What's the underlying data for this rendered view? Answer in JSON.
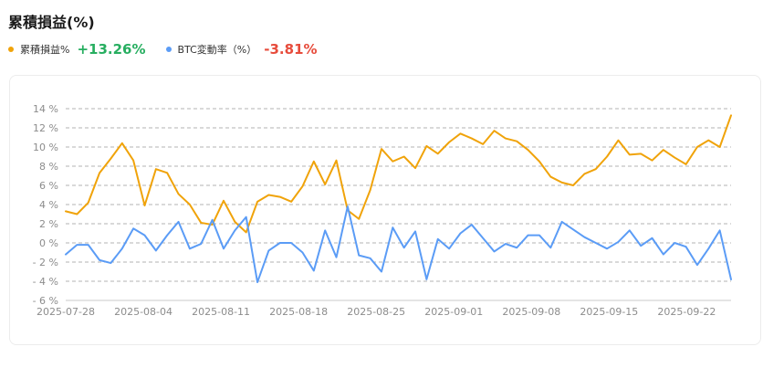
{
  "header": {
    "title": "累積損益(%)"
  },
  "legend": {
    "items": [
      {
        "label": "累積損益%",
        "value": "+13.26%",
        "color": "#f0a30a",
        "value_color": "#27ae60"
      },
      {
        "label": "BTC変動率（%）",
        "value": "-3.81%",
        "color": "#5b9cf6",
        "value_color": "#e74c3c"
      }
    ]
  },
  "chart_data": {
    "type": "line",
    "title": "累積損益(%)",
    "ylim": [
      -6,
      14
    ],
    "yticks": [
      -6,
      -4,
      -2,
      0,
      2,
      4,
      6,
      8,
      10,
      12,
      14
    ],
    "ytick_labels": [
      "- 6 %",
      "- 4 %",
      "- 2 %",
      "0 %",
      "2 %",
      "4 %",
      "6 %",
      "8 %",
      "10 %",
      "12 %",
      "14 %"
    ],
    "xlim": [
      "2025-07-28",
      "2025-09-26"
    ],
    "xtick_labels": [
      "2025-07-28",
      "2025-08-04",
      "2025-08-11",
      "2025-08-18",
      "2025-08-25",
      "2025-09-01",
      "2025-09-08",
      "2025-09-15",
      "2025-09-22"
    ],
    "grid": true,
    "series": [
      {
        "name": "累積損益%",
        "color": "#f0a30a",
        "values": [
          3.3,
          3.0,
          4.2,
          7.3,
          8.8,
          10.4,
          8.6,
          3.9,
          7.7,
          7.3,
          5.1,
          4.0,
          2.1,
          1.9,
          4.4,
          2.2,
          1.1,
          4.3,
          5.0,
          4.8,
          4.3,
          5.9,
          8.5,
          6.1,
          8.6,
          3.4,
          2.5,
          5.5,
          9.8,
          8.5,
          9.0,
          7.8,
          10.1,
          9.3,
          10.5,
          11.4,
          10.9,
          10.3,
          11.7,
          10.9,
          10.6,
          9.7,
          8.5,
          6.9,
          6.3,
          6.0,
          7.2,
          7.7,
          9.0,
          10.7,
          9.2,
          9.3,
          8.6,
          9.7,
          8.9,
          8.2,
          10.0,
          10.7,
          10.0,
          13.3
        ]
      },
      {
        "name": "BTC変動率（%）",
        "color": "#5b9cf6",
        "values": [
          -1.2,
          -0.2,
          -0.2,
          -1.8,
          -2.1,
          -0.6,
          1.5,
          0.8,
          -0.8,
          0.8,
          2.2,
          -0.6,
          -0.1,
          2.4,
          -0.6,
          1.3,
          2.7,
          -4.1,
          -0.8,
          0.0,
          0.0,
          -1.0,
          -2.9,
          1.3,
          -1.5,
          3.8,
          -1.3,
          -1.6,
          -3.0,
          1.6,
          -0.5,
          1.2,
          -3.8,
          0.4,
          -0.6,
          1.0,
          1.9,
          0.5,
          -0.9,
          -0.1,
          -0.5,
          0.8,
          0.8,
          -0.5,
          2.2,
          1.4,
          0.6,
          0.0,
          -0.6,
          0.1,
          1.3,
          -0.3,
          0.5,
          -1.2,
          0.0,
          -0.4,
          -2.3,
          -0.6,
          1.3,
          -3.81
        ]
      }
    ]
  }
}
